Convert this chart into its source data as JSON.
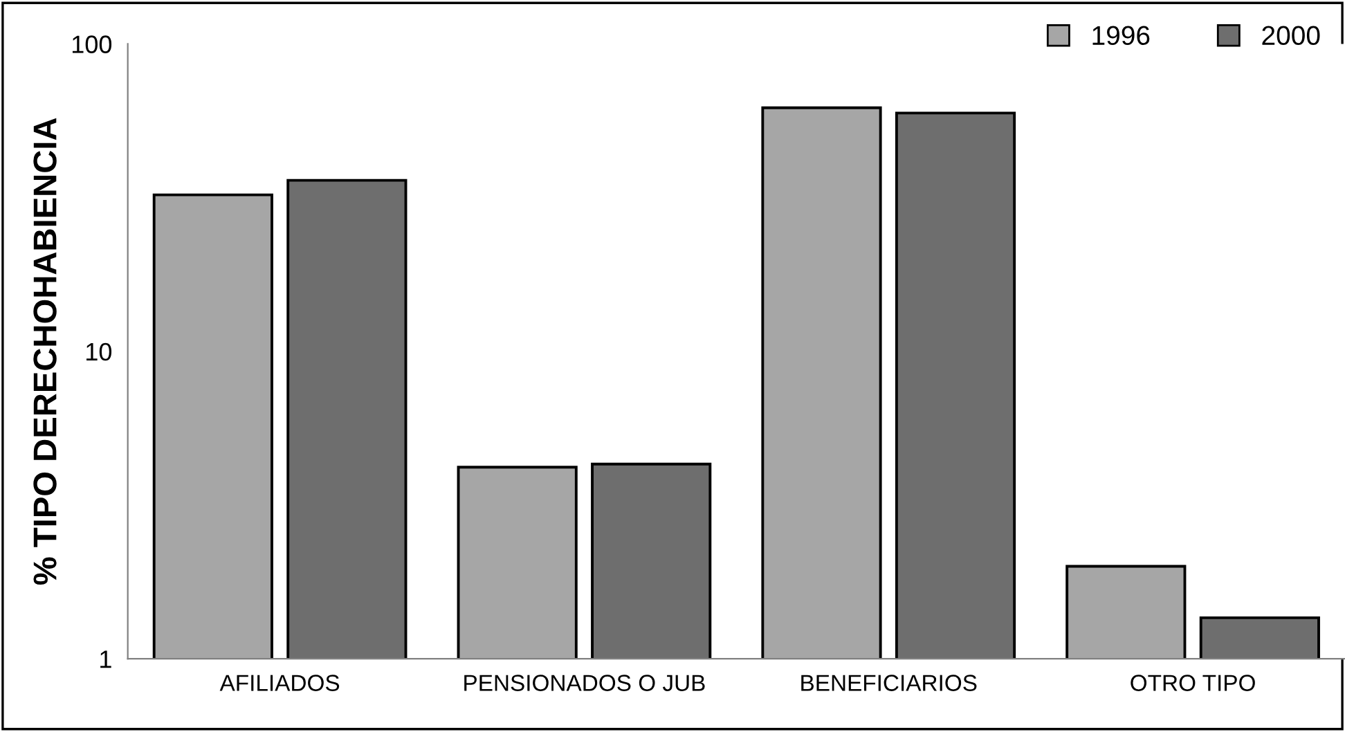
{
  "chart_data": {
    "type": "bar",
    "ylabel": "% TIPO DERECHOHABIENCIA",
    "categories": [
      "AFILIADOS",
      "PENSIONADOS O JUB",
      "BENEFICIARIOS",
      "OTRO TIPO"
    ],
    "series": [
      {
        "name": "1996",
        "color": "#a6a6a6",
        "values": [
          32.3,
          4.2,
          62,
          2.0
        ]
      },
      {
        "name": "2000",
        "color": "#6e6e6e",
        "values": [
          36,
          4.3,
          59.6,
          1.36
        ]
      }
    ],
    "log": "y",
    "ylim": [
      1,
      100
    ],
    "yticks": [
      1,
      10,
      100
    ],
    "legend": "top right",
    "grid": false
  }
}
